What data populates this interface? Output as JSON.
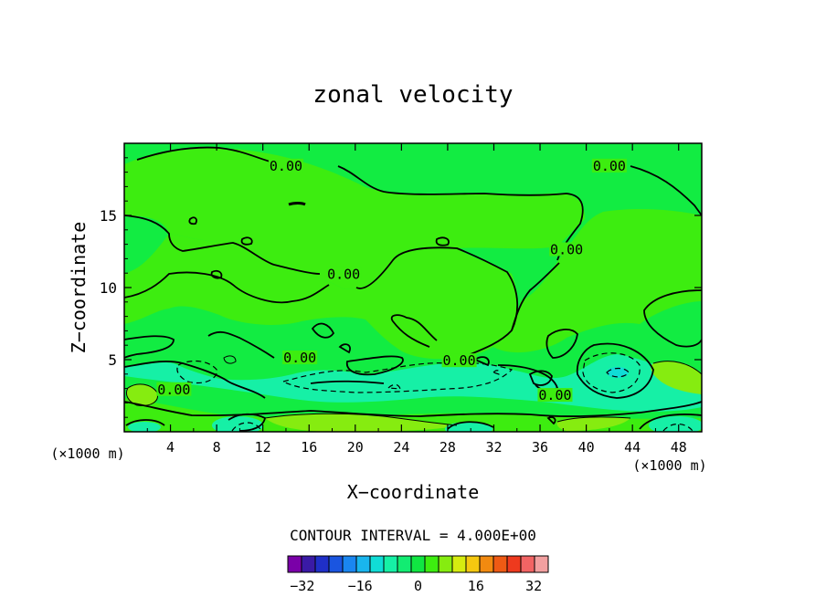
{
  "chart_data": {
    "type": "contour",
    "title": "zonal velocity",
    "xlabel": "X−coordinate",
    "ylabel": "Z−coordinate",
    "x_unit_label": "(×1000 m)",
    "xlim": [
      0,
      50
    ],
    "ylim": [
      0,
      20
    ],
    "x_ticks": [
      4,
      8,
      12,
      16,
      20,
      24,
      28,
      32,
      36,
      40,
      44,
      48
    ],
    "y_ticks": [
      5,
      10,
      15
    ],
    "contour_interval_text": "CONTOUR INTERVAL = 4.000E+00",
    "contour_interval": 4.0,
    "contour_labels": [
      {
        "text": "0.00",
        "x": 14,
        "y": 18.3
      },
      {
        "text": "0.00",
        "x": 42,
        "y": 18.3
      },
      {
        "text": "0.00",
        "x": 19,
        "y": 10.8
      },
      {
        "text": "0.00",
        "x": 38.3,
        "y": 12.5
      },
      {
        "text": "0.00",
        "x": 15.2,
        "y": 5.0
      },
      {
        "text": "0.00",
        "x": 4.3,
        "y": 2.8
      },
      {
        "text": "0.00",
        "x": 29,
        "y": 4.8
      },
      {
        "text": "0.00",
        "x": 37.3,
        "y": 2.4
      }
    ],
    "colorbar": {
      "min": -36,
      "max": 36,
      "step": 4,
      "tick_values": [
        -32,
        -16,
        0,
        16,
        32
      ],
      "tick_labels": [
        "−32",
        "−16",
        "0",
        "16",
        "32"
      ],
      "colors": [
        "#7a00a8",
        "#3a1aa6",
        "#1f2fc8",
        "#1a55e0",
        "#1a86f0",
        "#19b5ee",
        "#10dcd6",
        "#16f0a6",
        "#12ec72",
        "#10e642",
        "#3ded10",
        "#86ec10",
        "#d6ec10",
        "#f5c810",
        "#f28a10",
        "#ee5a14",
        "#ee3a1e",
        "#f26464",
        "#f2a0a0"
      ]
    }
  }
}
